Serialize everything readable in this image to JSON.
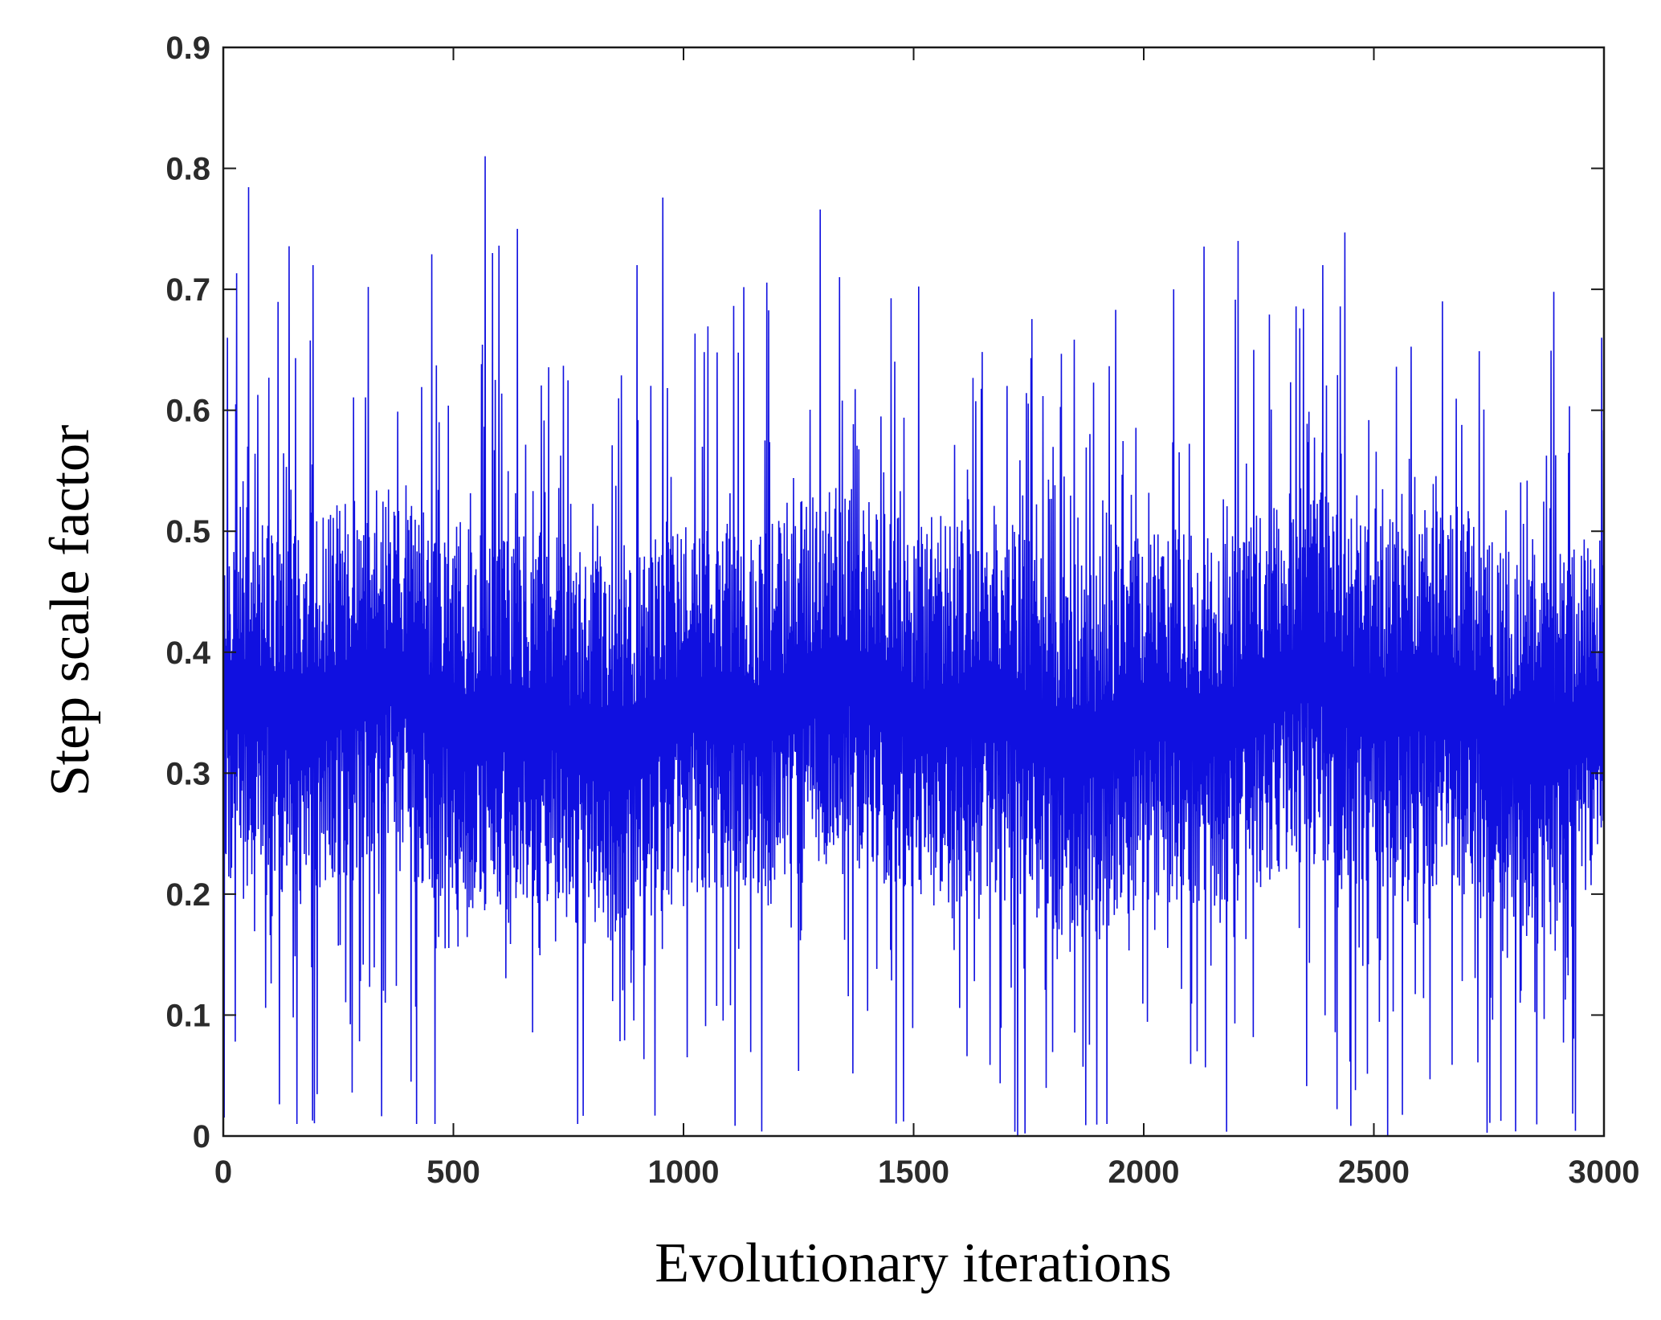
{
  "chart_data": {
    "type": "line",
    "title": "",
    "xlabel": "Evolutionary iterations",
    "ylabel": "Step scale factor",
    "xlim": [
      0,
      3000
    ],
    "ylim": [
      0,
      0.9
    ],
    "xticks": [
      0,
      500,
      1000,
      1500,
      2000,
      2500,
      3000
    ],
    "xtick_labels": [
      "0",
      "500",
      "1000",
      "1500",
      "2000",
      "2500",
      "3000"
    ],
    "yticks": [
      0,
      0.1,
      0.2,
      0.3,
      0.4,
      0.5,
      0.6,
      0.7,
      0.8,
      0.9
    ],
    "ytick_labels": [
      "0",
      "0.1",
      "0.2",
      "0.3",
      "0.4",
      "0.5",
      "0.6",
      "0.7",
      "0.8",
      "0.9"
    ],
    "grid": false,
    "legend": "none",
    "series": [
      {
        "name": "Step scale factor",
        "color": "#1010e0",
        "x_start": 1,
        "x_end": 3000,
        "n_points": 3000,
        "dense_band": [
          0.2,
          0.5
        ],
        "envelope_min": 0.0,
        "envelope_max": 0.81,
        "peaks": [
          {
            "x": 10,
            "y": 0.66
          },
          {
            "x": 195,
            "y": 0.72
          },
          {
            "x": 570,
            "y": 0.81
          },
          {
            "x": 585,
            "y": 0.73
          },
          {
            "x": 640,
            "y": 0.75
          },
          {
            "x": 900,
            "y": 0.72
          },
          {
            "x": 1340,
            "y": 0.71
          },
          {
            "x": 2065,
            "y": 0.7
          },
          {
            "x": 2205,
            "y": 0.74
          },
          {
            "x": 2390,
            "y": 0.72
          },
          {
            "x": 2650,
            "y": 0.69
          },
          {
            "x": 2995,
            "y": 0.66
          }
        ],
        "troughs": [
          {
            "x": 160,
            "y": 0.01
          },
          {
            "x": 420,
            "y": 0.01
          },
          {
            "x": 460,
            "y": 0.01
          },
          {
            "x": 770,
            "y": 0.01
          },
          {
            "x": 1725,
            "y": 0.0
          },
          {
            "x": 1920,
            "y": 0.01
          },
          {
            "x": 2530,
            "y": 0.0
          }
        ]
      }
    ]
  }
}
